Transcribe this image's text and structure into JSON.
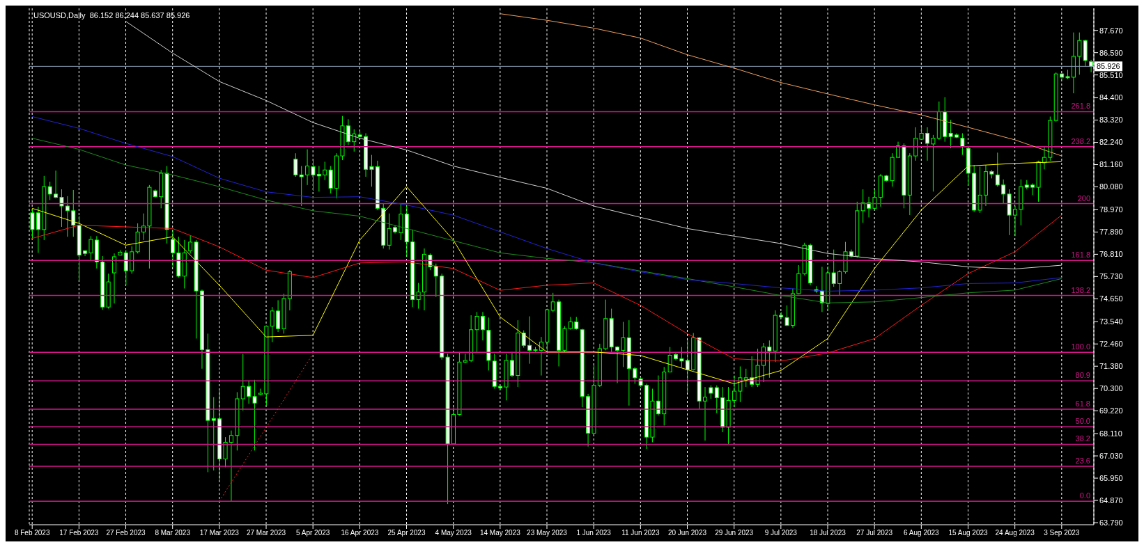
{
  "chart_data": {
    "type": "candlestick",
    "title": "USOUSD,Daily  86.152 86.244 85.637 85.926",
    "color": "#00ff00",
    "categories": [
      "8 Feb 2023",
      null,
      null,
      null,
      null,
      null,
      null,
      null,
      "17 Feb 2023",
      null,
      null,
      null,
      null,
      null,
      null,
      null,
      "27 Feb 2023",
      null,
      null,
      null,
      null,
      null,
      null,
      null,
      "8 Mar 2023",
      null,
      null,
      null,
      null,
      null,
      null,
      null,
      "17 Mar 2023",
      null,
      null,
      null,
      null,
      null,
      null,
      null,
      "27 Mar 2023",
      null,
      null,
      null,
      null,
      null,
      null,
      null,
      "5 Apr 2023",
      null,
      null,
      null,
      null,
      null,
      null,
      null,
      "16 Apr 2023",
      null,
      null,
      null,
      null,
      null,
      null,
      null,
      "25 Apr 2023",
      null,
      null,
      null,
      null,
      null,
      null,
      null,
      "4 May 2023",
      null,
      null,
      null,
      null,
      null,
      null,
      null,
      "14 May 2023",
      null,
      null,
      null,
      null,
      null,
      null,
      null,
      "23 May 2023",
      null,
      null,
      null,
      null,
      null,
      null,
      null,
      "1 Jun 2023",
      null,
      null,
      null,
      null,
      null,
      null,
      null,
      "11 Jun 2023",
      null,
      null,
      null,
      null,
      null,
      null,
      null,
      "20 Jun 2023",
      null,
      null,
      null,
      null,
      null,
      null,
      null,
      "29 Jun 2023",
      null,
      null,
      null,
      null,
      null,
      null,
      null,
      "9 Jul 2023",
      null,
      null,
      null,
      null,
      null,
      null,
      null,
      "18 Jul 2023",
      null,
      null,
      null,
      null,
      null,
      null,
      null,
      "27 Jul 2023",
      null,
      null,
      null,
      null,
      null,
      null,
      null,
      "6 Aug 2023",
      null,
      null,
      null,
      null,
      null,
      null,
      null,
      "15 Aug 2023",
      null,
      null,
      null,
      null,
      null,
      null,
      null,
      "24 Aug 2023",
      null,
      null,
      null,
      null,
      null,
      null,
      null,
      "3 Sep 2023",
      null,
      null,
      null,
      null,
      null
    ],
    "ohlc": [
      [
        78.82,
        78.95,
        77.5,
        78.01
      ],
      [
        78.82,
        79.12,
        76.88,
        78.01
      ],
      [
        78.01,
        80.61,
        77.5,
        80.09
      ],
      [
        80.09,
        80.33,
        79.44,
        79.73
      ],
      [
        79.73,
        80.87,
        79.52,
        79.57
      ],
      [
        79.57,
        79.96,
        78.14,
        79.15
      ],
      [
        79.15,
        79.63,
        77.66,
        78.92
      ],
      [
        78.92,
        79.93,
        77.66,
        78.22
      ],
      [
        78.22,
        78.66,
        75.55,
        76.77
      ],
      [
        76.98,
        77.01,
        76.72,
        76.85
      ],
      [
        76.88,
        77.69,
        76.52,
        77.53
      ],
      [
        77.5,
        77.69,
        76.12,
        76.44
      ],
      [
        76.44,
        76.72,
        74.12,
        74.25
      ],
      [
        74.25,
        75.87,
        74.17,
        75.47
      ],
      [
        75.91,
        76.85,
        74.42,
        76.69
      ],
      [
        76.77,
        77.01,
        76.77,
        76.91
      ],
      [
        76.88,
        77.01,
        75.31,
        76.01
      ],
      [
        76.01,
        77.2,
        75.87,
        76.93
      ],
      [
        76.93,
        78.31,
        76.85,
        77.89
      ],
      [
        77.89,
        78.79,
        77.5,
        78.18
      ],
      [
        78.18,
        80.17,
        76.12,
        80.06
      ],
      [
        79.89,
        79.96,
        79.57,
        79.6
      ],
      [
        79.6,
        80.9,
        79.04,
        80.74
      ],
      [
        80.74,
        81.09,
        77.33,
        78.01
      ],
      [
        77.53,
        77.98,
        76.2,
        76.88
      ],
      [
        76.88,
        77.66,
        75.68,
        75.75
      ],
      [
        75.75,
        77.5,
        75.15,
        76.88
      ],
      [
        76.98,
        77.72,
        76.85,
        77.4
      ],
      [
        77.4,
        77.5,
        72.72,
        75.03
      ],
      [
        75.03,
        75.1,
        71.26,
        72.18
      ],
      [
        72.18,
        72.96,
        66.24,
        68.75
      ],
      [
        68.84,
        69.88,
        66.32,
        68.75
      ],
      [
        68.83,
        70.2,
        65.86,
        66.88
      ],
      [
        66.88,
        67.94,
        66.48,
        67.69
      ],
      [
        67.69,
        68.26,
        64.83,
        68.02
      ],
      [
        68.02,
        70.12,
        67.29,
        69.8
      ],
      [
        69.8,
        71.99,
        69.23,
        70.4
      ],
      [
        70.4,
        70.69,
        69.56,
        69.91
      ],
      [
        69.91,
        70.72,
        67.29,
        69.59
      ],
      [
        70.01,
        70.29,
        69.96,
        70.07
      ],
      [
        70.04,
        73.36,
        69.47,
        73.32
      ],
      [
        73.32,
        74.25,
        72.55,
        74.06
      ],
      [
        74.06,
        74.58,
        73.04,
        73.2
      ],
      [
        73.2,
        74.9,
        72.96,
        74.66
      ],
      [
        74.66,
        76.04,
        74.09,
        75.96
      ],
      [
        81.42,
        81.71,
        80.57,
        80.66
      ],
      [
        80.66,
        81.09,
        79.15,
        80.57
      ],
      [
        80.66,
        81.9,
        80.17,
        81.09
      ],
      [
        81.06,
        81.35,
        79.89,
        80.66
      ],
      [
        80.69,
        81.09,
        79.85,
        80.61
      ],
      [
        80.66,
        81.3,
        80.41,
        80.9
      ],
      [
        80.9,
        81.09,
        79.76,
        80.01
      ],
      [
        80.01,
        81.71,
        79.52,
        81.58
      ],
      [
        81.58,
        83.52,
        81.38,
        83.04
      ],
      [
        83.04,
        83.36,
        82.11,
        82.27
      ],
      [
        82.27,
        82.87,
        81.79,
        82.65
      ],
      [
        82.6,
        82.76,
        82.49,
        82.52
      ],
      [
        82.52,
        82.68,
        80.57,
        80.93
      ],
      [
        81.06,
        81.63,
        80.09,
        80.93
      ],
      [
        81.06,
        81.35,
        78.95,
        79.04
      ],
      [
        79.04,
        79.28,
        77.09,
        77.25
      ],
      [
        77.25,
        78.79,
        77.04,
        78.06
      ],
      [
        78.11,
        78.22,
        77.82,
        77.9
      ],
      [
        77.85,
        79.25,
        77.5,
        78.76
      ],
      [
        78.76,
        79.2,
        76.69,
        77.41
      ],
      [
        77.41,
        78.01,
        74.25,
        74.61
      ],
      [
        74.61,
        75.42,
        74.17,
        74.98
      ],
      [
        74.98,
        77.09,
        74.09,
        76.81
      ],
      [
        76.77,
        76.85,
        76.04,
        76.2
      ],
      [
        76.23,
        76.36,
        74.74,
        75.75
      ],
      [
        75.75,
        75.87,
        71.7,
        71.82
      ],
      [
        71.82,
        71.99,
        64.7,
        67.61
      ],
      [
        67.61,
        69.39,
        67.58,
        69.04
      ],
      [
        69.04,
        72.07,
        68.99,
        71.58
      ],
      [
        71.58,
        71.99,
        71.53,
        71.66
      ],
      [
        71.66,
        73.85,
        71.58,
        73.15
      ],
      [
        73.15,
        74.01,
        72.07,
        73.8
      ],
      [
        73.8,
        74.01,
        72.63,
        73.15
      ],
      [
        73.12,
        73.74,
        71.17,
        71.66
      ],
      [
        71.63,
        71.99,
        70.29,
        70.4
      ],
      [
        70.4,
        70.45,
        70.24,
        70.33
      ],
      [
        70.37,
        71.99,
        69.72,
        71.66
      ],
      [
        71.66,
        72.07,
        70.85,
        70.93
      ],
      [
        70.93,
        73.61,
        70.37,
        72.99
      ],
      [
        72.99,
        73.12,
        72.28,
        72.39
      ],
      [
        72.39,
        73.8,
        71.5,
        72.15
      ],
      [
        72.15,
        72.31,
        72.07,
        72.18
      ],
      [
        72.15,
        72.8,
        70.93,
        72.55
      ],
      [
        72.55,
        74.17,
        71.99,
        74.12
      ],
      [
        74.09,
        74.94,
        74.01,
        74.5
      ],
      [
        74.5,
        74.61,
        71.37,
        72.15
      ],
      [
        72.15,
        73.32,
        72.07,
        73.2
      ],
      [
        73.2,
        73.77,
        73.15,
        73.53
      ],
      [
        73.53,
        73.77,
        73.15,
        73.2
      ],
      [
        73.15,
        73.2,
        69.39,
        69.91
      ],
      [
        69.91,
        70.04,
        67.48,
        68.13
      ],
      [
        68.13,
        71.42,
        68.1,
        70.45
      ],
      [
        70.45,
        72.47,
        70.37,
        72.23
      ],
      [
        72.23,
        74.61,
        72.15,
        73.69
      ],
      [
        73.69,
        74.17,
        72.07,
        72.31
      ],
      [
        72.31,
        72.35,
        70.56,
        72.15
      ],
      [
        72.15,
        73.53,
        71.34,
        72.76
      ],
      [
        72.76,
        73.61,
        69.47,
        71.26
      ],
      [
        71.26,
        71.34,
        70.53,
        70.82
      ],
      [
        70.77,
        70.85,
        70.37,
        70.45
      ],
      [
        70.45,
        70.53,
        67.37,
        67.94
      ],
      [
        67.94,
        70.29,
        67.69,
        69.69
      ],
      [
        69.69,
        70.93,
        68.99,
        69.07
      ],
      [
        69.07,
        71.34,
        68.5,
        71.1
      ],
      [
        71.1,
        72.31,
        71.1,
        71.91
      ],
      [
        71.95,
        72.02,
        71.66,
        71.74
      ],
      [
        71.74,
        72.31,
        71.34,
        71.63
      ],
      [
        71.66,
        72.63,
        70.12,
        71.21
      ],
      [
        71.21,
        72.99,
        71.17,
        72.76
      ],
      [
        72.76,
        72.8,
        69.31,
        69.69
      ],
      [
        69.69,
        70.37,
        67.77,
        69.88
      ],
      [
        70.34,
        70.45,
        69.8,
        70.07
      ],
      [
        70.34,
        70.45,
        69.1,
        69.85
      ],
      [
        69.85,
        70.37,
        68.18,
        68.42
      ],
      [
        68.42,
        70.37,
        67.58,
        69.72
      ],
      [
        69.72,
        70.93,
        69.39,
        70.17
      ],
      [
        70.17,
        71.37,
        69.64,
        70.82
      ],
      [
        70.72,
        71.26,
        70.37,
        70.82
      ],
      [
        70.82,
        71.86,
        70.37,
        70.5
      ],
      [
        70.5,
        72.23,
        70.37,
        71.42
      ],
      [
        71.42,
        72.5,
        70.61,
        72.31
      ],
      [
        72.31,
        72.63,
        70.82,
        72.12
      ],
      [
        72.12,
        74.09,
        71.58,
        73.85
      ],
      [
        73.85,
        74.01,
        73.69,
        73.77
      ],
      [
        73.74,
        74.33,
        73.32,
        73.36
      ],
      [
        73.36,
        75.15,
        73.25,
        74.9
      ],
      [
        74.9,
        76.28,
        74.87,
        75.87
      ],
      [
        75.87,
        77.37,
        75.79,
        77.25
      ],
      [
        77.25,
        77.33,
        75.31,
        75.42
      ],
      [
        75.1,
        75.26,
        74.94,
        75.03
      ],
      [
        75.03,
        76.2,
        74.01,
        74.45
      ],
      [
        74.42,
        76.23,
        74.09,
        75.91
      ],
      [
        75.91,
        77.04,
        75.23,
        75.39
      ],
      [
        75.39,
        76.04,
        74.82,
        75.96
      ],
      [
        75.96,
        77.41,
        75.87,
        76.93
      ],
      [
        76.93,
        77.04,
        76.65,
        76.72
      ],
      [
        76.72,
        79.36,
        76.65,
        78.92
      ],
      [
        78.92,
        79.96,
        78.34,
        79.31
      ],
      [
        79.31,
        79.6,
        78.6,
        79.04
      ],
      [
        79.04,
        79.93,
        78.95,
        79.57
      ],
      [
        79.57,
        80.7,
        79.12,
        80.61
      ],
      [
        80.61,
        80.66,
        80.33,
        80.38
      ],
      [
        80.38,
        81.71,
        80.09,
        81.51
      ],
      [
        81.51,
        82.27,
        81.51,
        82.07
      ],
      [
        82.07,
        82.19,
        79.04,
        79.68
      ],
      [
        79.68,
        81.71,
        78.71,
        81.58
      ],
      [
        81.58,
        82.97,
        81.35,
        82.44
      ],
      [
        82.39,
        83.0,
        82.36,
        82.68
      ],
      [
        82.68,
        82.97,
        81.35,
        82.19
      ],
      [
        82.16,
        82.6,
        79.85,
        82.44
      ],
      [
        82.44,
        84.22,
        82.36,
        83.73
      ],
      [
        83.73,
        84.43,
        82.27,
        82.52
      ],
      [
        82.68,
        83.33,
        81.95,
        82.52
      ],
      [
        82.6,
        82.68,
        82.44,
        82.49
      ],
      [
        82.44,
        82.68,
        81.63,
        82.03
      ],
      [
        81.95,
        82.03,
        80.17,
        80.74
      ],
      [
        80.74,
        81.14,
        78.87,
        78.95
      ],
      [
        78.95,
        81.06,
        78.82,
        79.68
      ],
      [
        79.68,
        81.14,
        79.15,
        80.82
      ],
      [
        80.82,
        80.9,
        80.49,
        80.7
      ],
      [
        80.66,
        81.74,
        80.09,
        80.17
      ],
      [
        80.17,
        80.44,
        79.28,
        79.73
      ],
      [
        79.73,
        79.96,
        77.74,
        78.71
      ],
      [
        78.71,
        79.15,
        77.69,
        78.99
      ],
      [
        78.99,
        80.44,
        78.22,
        80.09
      ],
      [
        80.17,
        80.41,
        79.96,
        80.06
      ],
      [
        80.17,
        80.25,
        79.68,
        80.06
      ],
      [
        80.06,
        81.35,
        79.36,
        81.3
      ],
      [
        81.25,
        82.03,
        80.93,
        81.51
      ],
      [
        81.51,
        83.49,
        81.35,
        83.3
      ],
      [
        83.3,
        85.63,
        83.25,
        85.56
      ],
      [
        85.56,
        85.6,
        85.3,
        85.4
      ],
      [
        85.43,
        85.76,
        85.3,
        85.37
      ],
      [
        85.4,
        87.57,
        84.62,
        86.41
      ],
      [
        86.41,
        87.57,
        85.52,
        87.18
      ],
      [
        87.18,
        87.22,
        85.92,
        86.21
      ],
      [
        86.152,
        86.244,
        85.637,
        85.926
      ]
    ],
    "series": [
      {
        "type": "line",
        "color": "#ffff00",
        "x": [
          "8 Feb 2023",
          "17 Feb 2023",
          "27 Feb 2023",
          "8 Mar 2023",
          "17 Mar 2023",
          "27 Mar 2023",
          "5 Apr 2023",
          "16 Apr 2023",
          "25 Apr 2023",
          "4 May 2023",
          "14 May 2023",
          "23 May 2023",
          "1 Jun 2023",
          "11 Jun 2023",
          "20 Jun 2023",
          "29 Jun 2023",
          "9 Jul 2023",
          "18 Jul 2023",
          "27 Jul 2023",
          "6 Aug 2023",
          "15 Aug 2023",
          "24 Aug 2023",
          "3 Sep 2023"
        ],
        "values": [
          79.04,
          78.31,
          77.25,
          77.66,
          75.31,
          72.8,
          72.88,
          77.5,
          80.09,
          77.5,
          73.77,
          72.07,
          72.07,
          71.9,
          71.21,
          70.53,
          71.17,
          72.72,
          76.12,
          78.95,
          81.09,
          81.22,
          81.3
        ]
      },
      {
        "type": "line",
        "color": "#ff1a1a",
        "x": [
          "8 Feb 2023",
          "17 Feb 2023",
          "27 Feb 2023",
          "8 Mar 2023",
          "17 Mar 2023",
          "27 Mar 2023",
          "5 Apr 2023",
          "16 Apr 2023",
          "25 Apr 2023",
          "4 May 2023",
          "14 May 2023",
          "23 May 2023",
          "1 Jun 2023",
          "11 Jun 2023",
          "20 Jun 2023",
          "29 Jun 2023",
          "9 Jul 2023",
          "18 Jul 2023",
          "27 Jul 2023",
          "6 Aug 2023",
          "15 Aug 2023",
          "24 Aug 2023",
          "3 Sep 2023"
        ],
        "values": [
          77.58,
          78.22,
          78.14,
          78.06,
          77.17,
          76.04,
          75.68,
          76.39,
          76.44,
          76.12,
          75.06,
          75.31,
          75.42,
          74.33,
          72.96,
          71.74,
          71.63,
          72.02,
          72.72,
          74.33,
          75.87,
          76.93,
          78.71
        ]
      },
      {
        "type": "line",
        "color": "#1e8c1e",
        "x": [
          "8 Feb 2023",
          "17 Feb 2023",
          "27 Feb 2023",
          "8 Mar 2023",
          "17 Mar 2023",
          "27 Mar 2023",
          "5 Apr 2023",
          "16 Apr 2023",
          "25 Apr 2023",
          "4 May 2023",
          "14 May 2023",
          "23 May 2023",
          "1 Jun 2023",
          "11 Jun 2023",
          "20 Jun 2023",
          "29 Jun 2023",
          "9 Jul 2023",
          "18 Jul 2023",
          "27 Jul 2023",
          "6 Aug 2023",
          "15 Aug 2023",
          "24 Aug 2023",
          "3 Sep 2023"
        ],
        "values": [
          82.44,
          81.9,
          81.14,
          80.66,
          80.09,
          79.44,
          78.92,
          78.66,
          78.06,
          77.47,
          76.88,
          76.61,
          76.4,
          76.0,
          75.63,
          75.23,
          74.81,
          74.45,
          74.5,
          74.71,
          74.94,
          75.07,
          75.63
        ]
      },
      {
        "type": "line",
        "color": "#2323d8",
        "x": [
          "8 Feb 2023",
          "17 Feb 2023",
          "27 Feb 2023",
          "8 Mar 2023",
          "17 Mar 2023",
          "27 Mar 2023",
          "5 Apr 2023",
          "16 Apr 2023",
          "25 Apr 2023",
          "4 May 2023",
          "14 May 2023",
          "23 May 2023",
          "1 Jun 2023",
          "11 Jun 2023",
          "20 Jun 2023",
          "29 Jun 2023",
          "9 Jul 2023",
          "18 Jul 2023",
          "27 Jul 2023",
          "6 Aug 2023",
          "15 Aug 2023",
          "24 Aug 2023",
          "3 Sep 2023"
        ],
        "values": [
          83.49,
          82.92,
          82.19,
          81.55,
          80.5,
          79.84,
          79.57,
          79.6,
          79.2,
          78.71,
          77.9,
          77.09,
          76.39,
          75.96,
          75.58,
          75.39,
          75.18,
          75.02,
          75.07,
          75.18,
          75.39,
          75.42,
          75.68
        ]
      },
      {
        "type": "line",
        "color": "#d0d0d0",
        "x": [
          "27 Feb 2023",
          "8 Mar 2023",
          "17 Mar 2023",
          "27 Mar 2023",
          "5 Apr 2023",
          "16 Apr 2023",
          "25 Apr 2023",
          "4 May 2023",
          "14 May 2023",
          "23 May 2023",
          "1 Jun 2023",
          "11 Jun 2023",
          "20 Jun 2023",
          "29 Jun 2023",
          "9 Jul 2023",
          "18 Jul 2023",
          "27 Jul 2023",
          "6 Aug 2023",
          "15 Aug 2023",
          "24 Aug 2023",
          "3 Sep 2023"
        ],
        "values": [
          88.11,
          86.57,
          85.19,
          84.27,
          83.2,
          82.44,
          81.87,
          81.09,
          80.54,
          80.01,
          79.15,
          78.6,
          78.06,
          77.69,
          77.33,
          76.85,
          76.6,
          76.44,
          76.2,
          76.1,
          76.28
        ]
      },
      {
        "type": "line",
        "color": "#f0a060",
        "x": [
          "14 May 2023",
          "23 May 2023",
          "1 Jun 2023",
          "11 Jun 2023",
          "20 Jun 2023",
          "29 Jun 2023",
          "9 Jul 2023",
          "18 Jul 2023",
          "27 Jul 2023",
          "6 Aug 2023",
          "15 Aug 2023",
          "24 Aug 2023",
          "3 Sep 2023"
        ],
        "values": [
          88.48,
          88.16,
          87.78,
          87.3,
          86.49,
          85.84,
          85.14,
          84.59,
          84.06,
          83.57,
          82.97,
          82.36,
          81.58
        ]
      },
      {
        "type": "line",
        "color": "#ff2020",
        "line_style": "dotted",
        "x": [
          "17 Mar 2023",
          "5 Apr 2023"
        ],
        "values": [
          64.83,
          71.99
        ]
      }
    ],
    "ref_lines": [
      {
        "axis": "y",
        "value": 83.73,
        "color": "#d4168c"
      },
      {
        "axis": "y",
        "value": 82.03,
        "color": "#d4168c"
      },
      {
        "axis": "y",
        "value": 79.27,
        "color": "#d4168c"
      },
      {
        "axis": "y",
        "value": 76.51,
        "color": "#d4168c"
      },
      {
        "axis": "y",
        "value": 74.81,
        "color": "#d4168c"
      },
      {
        "axis": "y",
        "value": 72.05,
        "color": "#d4168c"
      },
      {
        "axis": "y",
        "value": 70.67,
        "color": "#d4168c"
      },
      {
        "axis": "y",
        "value": 69.29,
        "color": "#d4168c"
      },
      {
        "axis": "y",
        "value": 68.44,
        "color": "#d4168c"
      },
      {
        "axis": "y",
        "value": 67.59,
        "color": "#d4168c"
      },
      {
        "axis": "y",
        "value": 66.53,
        "color": "#d4168c"
      },
      {
        "axis": "y",
        "value": 64.83,
        "color": "#d4168c"
      },
      {
        "axis": "y",
        "value": 85.926,
        "label": "85.926",
        "color": "#8a9bb5"
      }
    ],
    "annotations": [
      {
        "text": "261.8",
        "y": 83.73
      },
      {
        "text": "238.2",
        "y": 82.03
      },
      {
        "text": "200",
        "y": 79.27
      },
      {
        "text": "161.8",
        "y": 76.51
      },
      {
        "text": "138.2",
        "y": 74.81
      },
      {
        "text": "100.0",
        "y": 72.05
      },
      {
        "text": "80.9",
        "y": 70.67
      },
      {
        "text": "61.8",
        "y": 69.29
      },
      {
        "text": "50.0",
        "y": 68.44
      },
      {
        "text": "38.2",
        "y": 67.59
      },
      {
        "text": "23.6",
        "y": 66.53
      },
      {
        "text": "0.0",
        "y": 64.83
      }
    ],
    "ylim": [
      63.69,
      88.74
    ],
    "yticks": [
      {
        "value": 63.79,
        "label": "63.790"
      },
      {
        "value": 64.87,
        "label": "64.870"
      },
      {
        "value": 65.95,
        "label": "65.950"
      },
      {
        "value": 67.03,
        "label": "67.030"
      },
      {
        "value": 68.11,
        "label": "68.110"
      },
      {
        "value": 69.22,
        "label": "69.220"
      },
      {
        "value": 70.3,
        "label": "70.300"
      },
      {
        "value": 71.38,
        "label": "71.380"
      },
      {
        "value": 72.46,
        "label": "72.460"
      },
      {
        "value": 73.54,
        "label": "73.540"
      },
      {
        "value": 74.65,
        "label": "74.650"
      },
      {
        "value": 75.73,
        "label": "75.730"
      },
      {
        "value": 76.81,
        "label": "76.810"
      },
      {
        "value": 77.89,
        "label": "77.890"
      },
      {
        "value": 78.97,
        "label": "78.970"
      },
      {
        "value": 80.08,
        "label": "80.080"
      },
      {
        "value": 81.16,
        "label": "81.160"
      },
      {
        "value": 82.24,
        "label": "82.240"
      },
      {
        "value": 83.32,
        "label": "83.320"
      },
      {
        "value": 84.4,
        "label": "84.400"
      },
      {
        "value": 85.51,
        "label": "85.510"
      },
      {
        "value": 86.59,
        "label": "86.590"
      },
      {
        "value": 87.67,
        "label": "87.670"
      }
    ],
    "grid": "x"
  }
}
